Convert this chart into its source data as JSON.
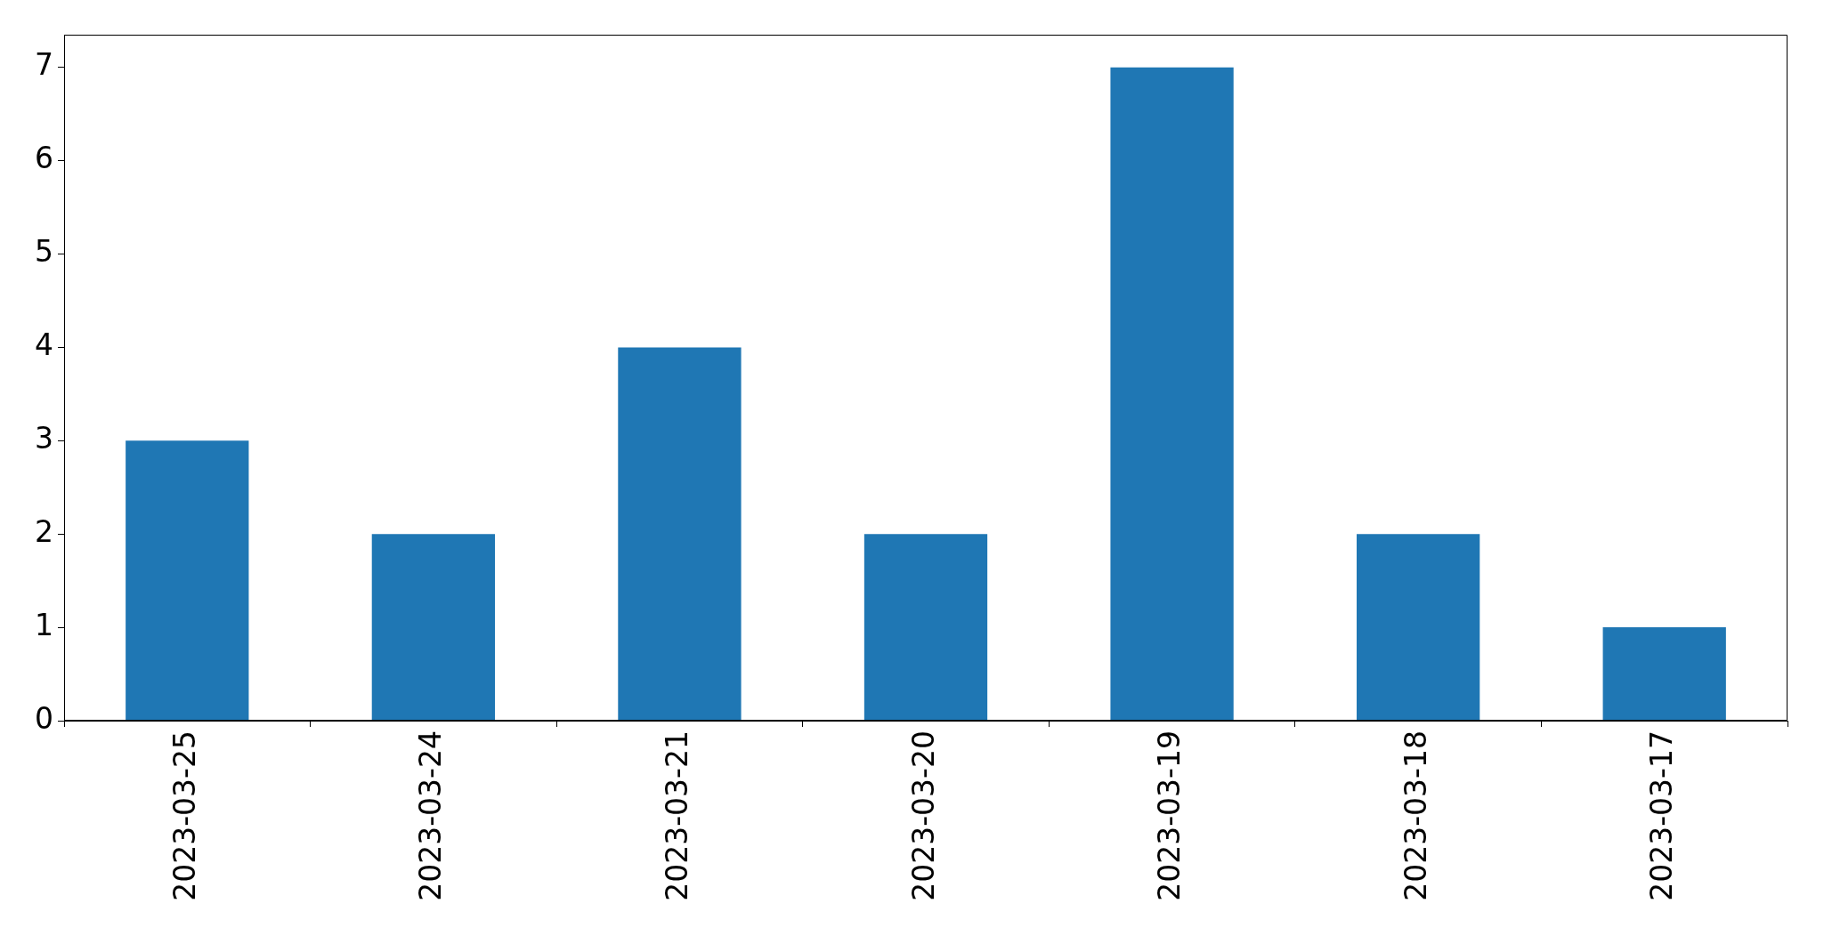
{
  "chart_data": {
    "type": "bar",
    "categories": [
      "2023-03-25",
      "2023-03-24",
      "2023-03-21",
      "2023-03-20",
      "2023-03-19",
      "2023-03-18",
      "2023-03-17"
    ],
    "values": [
      3,
      2,
      4,
      2,
      7,
      2,
      1
    ],
    "color": "#1f77b4",
    "ylim": [
      0,
      7.35
    ],
    "yticks": [
      0,
      1,
      2,
      3,
      4,
      5,
      6,
      7
    ]
  }
}
